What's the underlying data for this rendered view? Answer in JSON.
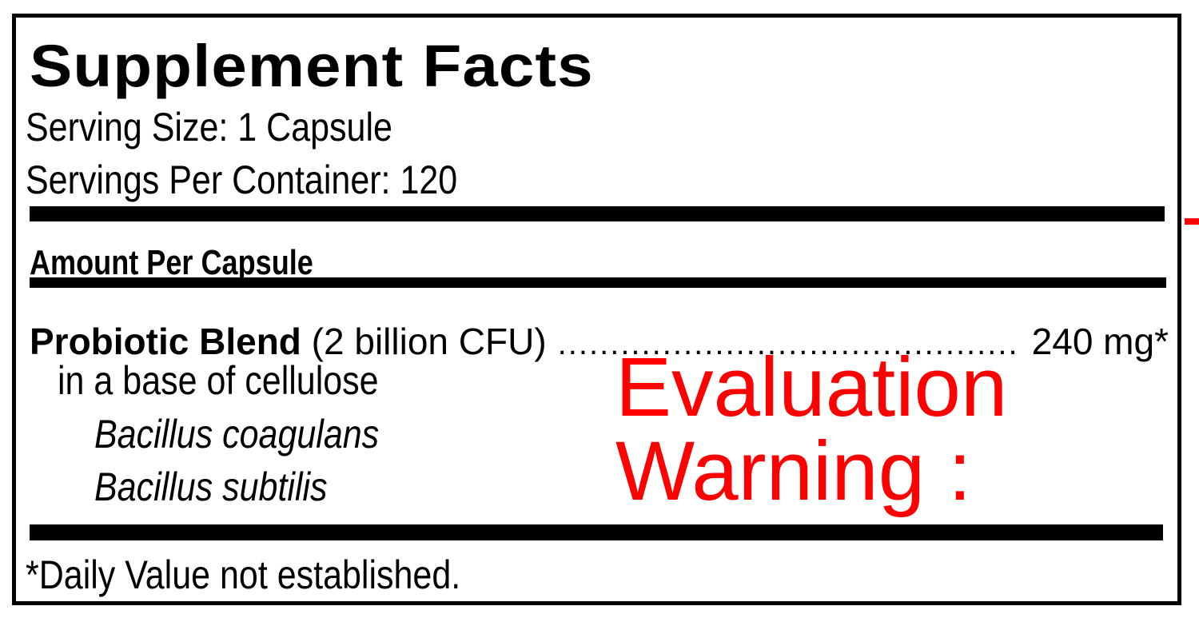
{
  "label": {
    "title": "Supplement Facts",
    "serving_size": "Serving Size: 1 Capsule",
    "servings_per_container": "Servings Per Container: 120",
    "amount_header": "Amount Per Capsule",
    "blend": {
      "name": "Probiotic Blend",
      "detail": " (2 billion CFU)",
      "amount": "240 mg*"
    },
    "base": "in a base of cellulose",
    "strains": [
      "Bacillus coagulans",
      "Bacillus subtilis"
    ],
    "footnote": "*Daily Value not established."
  },
  "watermark": {
    "text": "Evaluation Warning :",
    "color": "#ff0000"
  }
}
